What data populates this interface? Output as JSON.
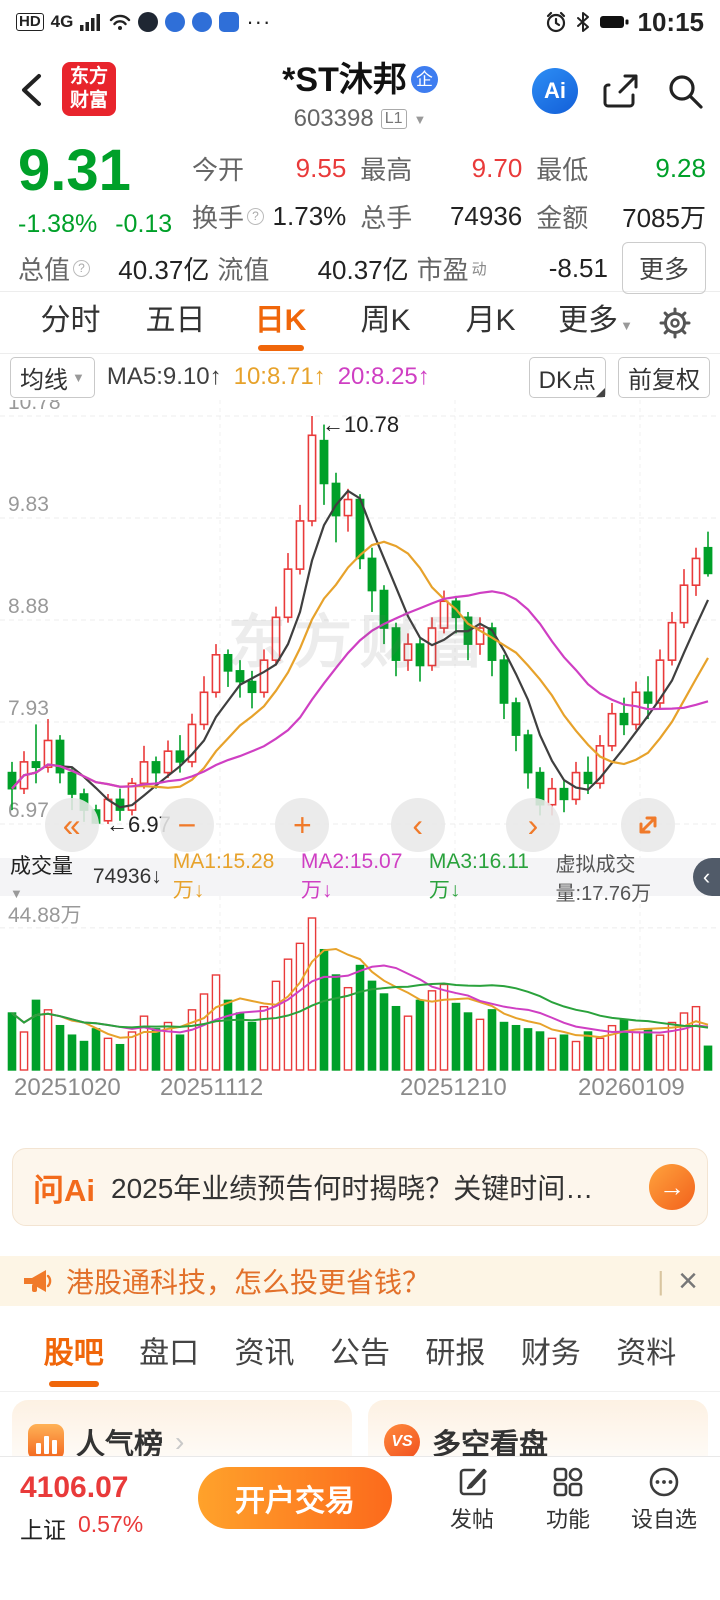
{
  "palette": {
    "red": "#e93a3a",
    "green": "#00a029",
    "accent": "#f0660a",
    "ma5": "#3f3f3f",
    "ma10": "#e7a22b",
    "ma20": "#cf3fc3",
    "vol_ma3": "#2aa23c"
  },
  "status_bar": {
    "hd": "HD",
    "net": "4G",
    "more": "···",
    "time": "10:15"
  },
  "header": {
    "logo_line1": "东方",
    "logo_line2": "财富",
    "stock_name": "*ST沐邦",
    "ent_badge": "企",
    "stock_code": "603398",
    "level": "L1",
    "ai_label": "Ai"
  },
  "quote": {
    "price": "9.31",
    "change_pct": "-1.38%",
    "change": "-0.13",
    "open_label": "今开",
    "open": "9.55",
    "high_label": "最高",
    "high": "9.70",
    "low_label": "最低",
    "low": "9.28",
    "turnover_label": "换手",
    "turnover": "1.73%",
    "lots_label": "总手",
    "lots": "74936",
    "amount_label": "金额",
    "amount": "7085万",
    "mktcap_label": "总值",
    "mktcap": "40.37亿",
    "float_label": "流值",
    "floatv": "40.37亿",
    "pe_label": "市盈",
    "pe_sup": "动",
    "pe": "-8.51",
    "more_label": "更多"
  },
  "period_tabs": {
    "items": [
      "分时",
      "五日",
      "日K",
      "周K",
      "月K"
    ],
    "more": "更多",
    "active": "日K"
  },
  "chart_toolbar": {
    "ma_btn": "均线",
    "ma5": "MA5:9.10↑",
    "ma10": "10:8.71↑",
    "ma20": "20:8.25↑",
    "dk_btn": "DK点",
    "adj_btn": "前复权"
  },
  "kchart": {
    "watermark": "东方财富",
    "high_note": "←10.78",
    "low_note": "←6.97"
  },
  "float_buttons": {
    "collapse": "«",
    "zoom_out": "−",
    "zoom_in": "+",
    "prev": "‹",
    "next": "›"
  },
  "volume_header": {
    "label": "成交量",
    "value": "74936↓",
    "ma1": "MA1:15.28万↓",
    "ma2": "MA2:15.07万↓",
    "ma3": "MA3:16.11万↓",
    "virtual": "虚拟成交量:17.76万",
    "collapse": "‹"
  },
  "chart_data": {
    "type": "candlestick+volume",
    "title": "*ST沐邦 603398 日K",
    "y_ticks": [
      "10.78",
      "9.83",
      "8.88",
      "7.93",
      "6.97"
    ],
    "price_min": 6.97,
    "price_max": 10.78,
    "vol_tick": "44.88万",
    "vol_tick_value": 44.88,
    "vol_max": 48,
    "x_labels": [
      "20251020",
      "20251112",
      "20251210",
      "20260109"
    ],
    "ma_periods": [
      5,
      10,
      20
    ],
    "candles": [
      [
        7.45,
        7.3,
        7.1,
        7.55,
        18
      ],
      [
        7.3,
        7.55,
        7.25,
        7.65,
        12
      ],
      [
        7.55,
        7.5,
        7.35,
        7.9,
        22
      ],
      [
        7.5,
        7.75,
        7.45,
        7.95,
        19
      ],
      [
        7.75,
        7.45,
        7.35,
        7.8,
        14
      ],
      [
        7.45,
        7.25,
        7.1,
        7.5,
        11
      ],
      [
        7.25,
        7.1,
        6.99,
        7.3,
        9
      ],
      [
        7.1,
        6.98,
        6.97,
        7.15,
        13
      ],
      [
        7.0,
        7.2,
        6.97,
        7.25,
        10
      ],
      [
        7.2,
        7.1,
        7.0,
        7.3,
        8
      ],
      [
        7.1,
        7.35,
        7.05,
        7.4,
        12
      ],
      [
        7.35,
        7.55,
        7.3,
        7.7,
        17
      ],
      [
        7.55,
        7.45,
        7.3,
        7.6,
        13
      ],
      [
        7.45,
        7.65,
        7.4,
        7.75,
        15
      ],
      [
        7.65,
        7.55,
        7.45,
        7.8,
        11
      ],
      [
        7.55,
        7.9,
        7.5,
        8.0,
        19
      ],
      [
        7.9,
        8.2,
        7.85,
        8.35,
        24
      ],
      [
        8.2,
        8.55,
        8.15,
        8.65,
        30
      ],
      [
        8.55,
        8.4,
        8.25,
        8.6,
        22
      ],
      [
        8.4,
        8.3,
        8.15,
        8.5,
        18
      ],
      [
        8.3,
        8.2,
        8.05,
        8.4,
        15
      ],
      [
        8.2,
        8.5,
        8.15,
        8.6,
        20
      ],
      [
        8.5,
        8.9,
        8.45,
        9.0,
        28
      ],
      [
        8.9,
        9.35,
        8.85,
        9.5,
        35
      ],
      [
        9.35,
        9.8,
        9.3,
        9.95,
        40
      ],
      [
        9.8,
        10.6,
        9.75,
        10.78,
        48
      ],
      [
        10.55,
        10.15,
        9.95,
        10.7,
        38
      ],
      [
        10.15,
        9.85,
        9.6,
        10.25,
        30
      ],
      [
        9.85,
        10.0,
        9.7,
        10.1,
        26
      ],
      [
        10.0,
        9.45,
        9.35,
        10.05,
        33
      ],
      [
        9.45,
        9.15,
        8.95,
        9.55,
        28
      ],
      [
        9.15,
        8.8,
        8.65,
        9.2,
        24
      ],
      [
        8.8,
        8.5,
        8.35,
        8.85,
        20
      ],
      [
        8.5,
        8.65,
        8.4,
        8.75,
        17
      ],
      [
        8.65,
        8.45,
        8.3,
        8.7,
        22
      ],
      [
        8.45,
        8.8,
        8.4,
        8.9,
        25
      ],
      [
        8.8,
        9.05,
        8.75,
        9.15,
        27
      ],
      [
        9.05,
        8.9,
        8.75,
        9.1,
        21
      ],
      [
        8.9,
        8.65,
        8.5,
        8.95,
        18
      ],
      [
        8.65,
        8.8,
        8.55,
        8.9,
        16
      ],
      [
        8.8,
        8.5,
        8.35,
        8.85,
        19
      ],
      [
        8.5,
        8.1,
        7.95,
        8.55,
        15
      ],
      [
        8.1,
        7.8,
        7.65,
        8.15,
        14
      ],
      [
        7.8,
        7.45,
        7.3,
        7.85,
        13
      ],
      [
        7.45,
        7.15,
        7.05,
        7.5,
        12
      ],
      [
        7.15,
        7.3,
        7.05,
        7.4,
        10
      ],
      [
        7.3,
        7.2,
        7.08,
        7.38,
        11
      ],
      [
        7.2,
        7.45,
        7.15,
        7.55,
        9
      ],
      [
        7.45,
        7.35,
        7.25,
        7.6,
        12
      ],
      [
        7.35,
        7.7,
        7.3,
        7.8,
        10
      ],
      [
        7.7,
        8.0,
        7.65,
        8.1,
        14
      ],
      [
        8.0,
        7.9,
        7.8,
        8.15,
        16
      ],
      [
        7.9,
        8.2,
        7.85,
        8.3,
        12
      ],
      [
        8.2,
        8.1,
        7.95,
        8.35,
        13
      ],
      [
        8.1,
        8.5,
        8.05,
        8.6,
        11
      ],
      [
        8.5,
        8.85,
        8.45,
        8.95,
        15
      ],
      [
        8.85,
        9.2,
        8.8,
        9.35,
        18
      ],
      [
        9.2,
        9.45,
        9.1,
        9.55,
        20
      ],
      [
        9.55,
        9.31,
        9.28,
        9.7,
        7.5
      ]
    ]
  },
  "ask_ai": {
    "logo": "问Ai",
    "question": "2025年业绩预告何时揭晓？关键时间…",
    "arrow": "→"
  },
  "banner": {
    "text": "港股通科技，怎么投更省钱？",
    "divider": "|",
    "close": "×"
  },
  "section_tabs": {
    "items": [
      "股吧",
      "盘口",
      "资讯",
      "公告",
      "研报",
      "财务",
      "资料"
    ],
    "active": "股吧"
  },
  "preview_cards": {
    "left_title": "人气榜",
    "left_arrow": "›",
    "vs": "VS",
    "right_title": "多空看盘"
  },
  "bottom_bar": {
    "index_value": "4106.07",
    "index_name": "上证",
    "index_pct": "0.57%",
    "trade_btn": "开户交易",
    "post": "发帖",
    "features": "功能",
    "watchlist": "设自选"
  }
}
